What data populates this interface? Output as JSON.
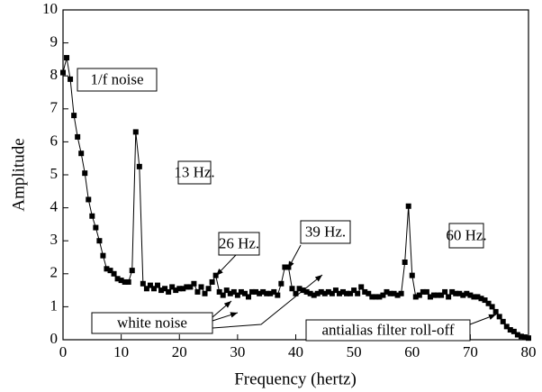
{
  "chart_data": {
    "type": "line",
    "x_label": "Frequency (hertz)",
    "y_label": "Amplitude",
    "color": "#000000",
    "x": [
      0,
      0.625,
      1.25,
      1.875,
      2.5,
      3.125,
      3.75,
      4.375,
      5,
      5.625,
      6.25,
      6.875,
      7.5,
      8.125,
      8.75,
      9.375,
      10,
      10.625,
      11.25,
      11.875,
      12.5,
      13.125,
      13.75,
      14.375,
      15,
      15.625,
      16.25,
      16.875,
      17.5,
      18.125,
      18.75,
      19.375,
      20,
      20.625,
      21.25,
      21.875,
      22.5,
      23.125,
      23.75,
      24.375,
      25,
      25.625,
      26.25,
      26.875,
      27.5,
      28.125,
      28.75,
      29.375,
      30,
      30.625,
      31.25,
      31.875,
      32.5,
      33.125,
      33.75,
      34.375,
      35,
      35.625,
      36.25,
      36.875,
      37.5,
      38.125,
      38.75,
      39.375,
      40,
      40.625,
      41.25,
      41.875,
      42.5,
      43.125,
      43.75,
      44.375,
      45,
      45.625,
      46.25,
      46.875,
      47.5,
      48.125,
      48.75,
      49.375,
      50,
      50.625,
      51.25,
      51.875,
      52.5,
      53.125,
      53.75,
      54.375,
      55,
      55.625,
      56.25,
      56.875,
      57.5,
      58.125,
      58.75,
      59.375,
      60,
      60.625,
      61.25,
      61.875,
      62.5,
      63.125,
      63.75,
      64.375,
      65,
      65.625,
      66.25,
      66.875,
      67.5,
      68.125,
      68.75,
      69.375,
      70,
      70.625,
      71.25,
      71.875,
      72.5,
      73.125,
      73.75,
      74.375,
      75,
      75.625,
      76.25,
      76.875,
      77.5,
      78.125,
      78.75,
      79.375,
      80
    ],
    "values": [
      8.1,
      8.55,
      7.9,
      6.8,
      6.15,
      5.65,
      5.05,
      4.25,
      3.75,
      3.4,
      3.0,
      2.55,
      2.15,
      2.1,
      2.0,
      1.85,
      1.8,
      1.75,
      1.75,
      2.1,
      6.3,
      5.25,
      1.7,
      1.55,
      1.65,
      1.55,
      1.65,
      1.5,
      1.55,
      1.45,
      1.6,
      1.5,
      1.55,
      1.55,
      1.6,
      1.6,
      1.7,
      1.45,
      1.6,
      1.4,
      1.55,
      1.75,
      1.95,
      1.45,
      1.35,
      1.5,
      1.4,
      1.45,
      1.35,
      1.45,
      1.4,
      1.3,
      1.45,
      1.45,
      1.4,
      1.45,
      1.4,
      1.4,
      1.45,
      1.35,
      1.7,
      2.2,
      2.2,
      1.55,
      1.4,
      1.55,
      1.5,
      1.45,
      1.4,
      1.35,
      1.4,
      1.45,
      1.4,
      1.45,
      1.4,
      1.5,
      1.4,
      1.45,
      1.4,
      1.4,
      1.5,
      1.4,
      1.6,
      1.45,
      1.4,
      1.3,
      1.3,
      1.3,
      1.35,
      1.45,
      1.4,
      1.4,
      1.35,
      1.4,
      2.35,
      4.05,
      1.95,
      1.3,
      1.35,
      1.45,
      1.45,
      1.3,
      1.35,
      1.35,
      1.35,
      1.45,
      1.3,
      1.45,
      1.4,
      1.4,
      1.35,
      1.4,
      1.35,
      1.3,
      1.3,
      1.25,
      1.2,
      1.1,
      1.0,
      0.85,
      0.7,
      0.55,
      0.4,
      0.3,
      0.25,
      0.15,
      0.1,
      0.08,
      0.05
    ],
    "xlim": [
      0,
      80
    ],
    "xticks": [
      0,
      10,
      20,
      30,
      40,
      50,
      60,
      70,
      80
    ],
    "ylim": [
      0,
      10
    ],
    "yticks": [
      0,
      1,
      2,
      3,
      4,
      5,
      6,
      7,
      8,
      9,
      10
    ],
    "annotations": [
      "1/f noise",
      "13 Hz.",
      "26 Hz.",
      "39 Hz.",
      "60 Hz.",
      "white noise",
      "antialias filter roll-off"
    ]
  }
}
